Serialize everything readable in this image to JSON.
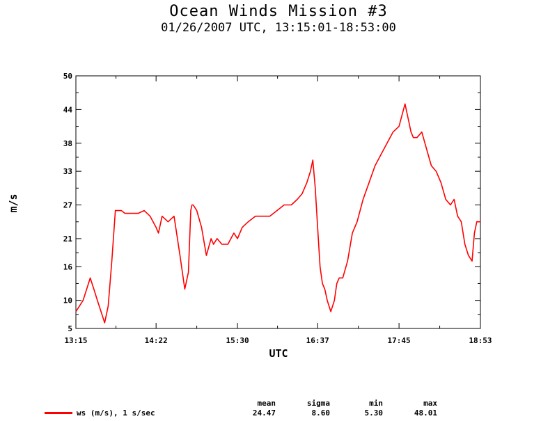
{
  "header": {
    "title": "Ocean Winds Mission #3",
    "subtitle": "01/26/2007  UTC, 13:15:01-18:53:00"
  },
  "chart_data": {
    "type": "line",
    "xlabel": "UTC",
    "ylabel": "m/s",
    "xlim": [
      "13:15",
      "18:53"
    ],
    "ylim": [
      5,
      50
    ],
    "x_ticks": [
      "13:15",
      "14:22",
      "15:30",
      "16:37",
      "17:45",
      "18:53"
    ],
    "y_ticks": [
      "5",
      "10",
      "16",
      "21",
      "27",
      "33",
      "38",
      "44",
      "50"
    ],
    "grid": false,
    "series": [
      {
        "name": "ws (m/s), 1 s/sec",
        "color": "#ff0000",
        "x": [
          "13:15",
          "13:18",
          "13:21",
          "13:24",
          "13:27",
          "13:30",
          "13:33",
          "13:36",
          "13:39",
          "13:42",
          "13:45",
          "13:48",
          "13:51",
          "13:53",
          "13:56",
          "13:59",
          "14:02",
          "14:07",
          "14:12",
          "14:17",
          "14:22",
          "14:24",
          "14:27",
          "14:32",
          "14:37",
          "14:42",
          "14:46",
          "14:49",
          "14:51",
          "14:52",
          "14:53",
          "14:56",
          "15:00",
          "15:04",
          "15:08",
          "15:10",
          "15:13",
          "15:17",
          "15:22",
          "15:27",
          "15:30",
          "15:34",
          "15:39",
          "15:45",
          "15:51",
          "15:57",
          "16:03",
          "16:09",
          "16:15",
          "16:20",
          "16:24",
          "16:28",
          "16:31",
          "16:33",
          "16:35",
          "16:37",
          "16:39",
          "16:41",
          "16:43",
          "16:45",
          "16:48",
          "16:51",
          "16:53",
          "16:55",
          "16:58",
          "17:02",
          "17:06",
          "17:10",
          "17:15",
          "17:20",
          "17:25",
          "17:30",
          "17:35",
          "17:40",
          "17:45",
          "17:50",
          "17:53",
          "17:55",
          "17:57",
          "18:00",
          "18:04",
          "18:08",
          "18:12",
          "18:16",
          "18:20",
          "18:24",
          "18:28",
          "18:31",
          "18:34",
          "18:37",
          "18:40",
          "18:43",
          "18:46",
          "18:48",
          "18:50",
          "18:53"
        ],
        "values": [
          8,
          9,
          10,
          12,
          14,
          12,
          10,
          8,
          6,
          9,
          17,
          26,
          26,
          26,
          25.5,
          25.5,
          25.5,
          25.5,
          26,
          25,
          23,
          22,
          25,
          24,
          25,
          18,
          12,
          15,
          26,
          27,
          27,
          26,
          23,
          18,
          21,
          20,
          21,
          20,
          20,
          22,
          21,
          23,
          24,
          25,
          25,
          25,
          26,
          27,
          27,
          28,
          29,
          31,
          33,
          35,
          30,
          23,
          16,
          13,
          12,
          10,
          8,
          10,
          13,
          14,
          14,
          17,
          22,
          24,
          28,
          31,
          34,
          36,
          38,
          40,
          41,
          45,
          42,
          40,
          39,
          39,
          40,
          37,
          34,
          33,
          31,
          28,
          27,
          28,
          25,
          24,
          20,
          18,
          17,
          22,
          24,
          24
        ]
      }
    ]
  },
  "legend": {
    "headers": {
      "mean": "mean",
      "sigma": "sigma",
      "min": "min",
      "max": "max"
    },
    "series_label": "ws (m/s), 1 s/sec",
    "mean": "24.47",
    "sigma": "8.60",
    "min": "5.30",
    "max": "48.01"
  }
}
